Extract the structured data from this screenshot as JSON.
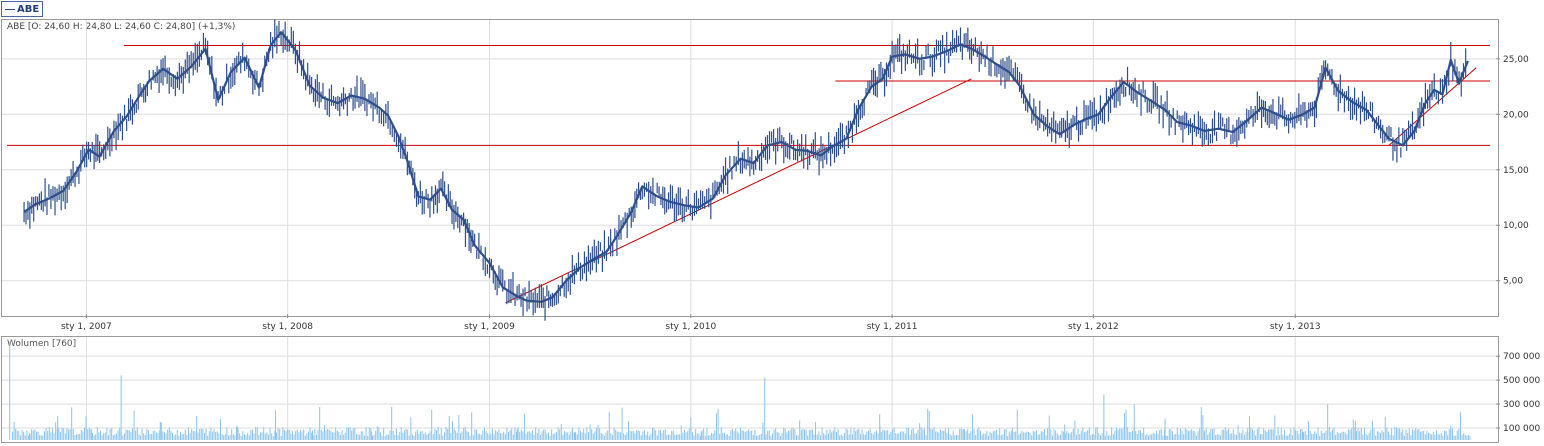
{
  "legend": {
    "symbol": "ABE"
  },
  "price_panel": {
    "ohlc_text": "ABE [O: 24,60  H: 24,80  L: 24,60  C: 24,80] (+1,3%)"
  },
  "volume_panel": {
    "label": "Wolumen [760]"
  },
  "colors": {
    "price_line": "#2f4e8c",
    "trend_line": "#cc0000",
    "volume_bar": "#8ec3e8",
    "grid": "#dddddd"
  },
  "chart_data": [
    {
      "type": "line",
      "series": [
        {
          "values_x": [
            "2006-09-10",
            "2006-10-01",
            "2006-10-25",
            "2006-11-20",
            "2006-12-15",
            "2007-01-05",
            "2007-01-25",
            "2007-02-20",
            "2007-03-15",
            "2007-04-05",
            "2007-04-25",
            "2007-05-20",
            "2007-06-15",
            "2007-07-10",
            "2007-08-05",
            "2007-08-28",
            "2007-09-20",
            "2007-10-15",
            "2007-11-10",
            "2007-12-01",
            "2007-12-20",
            "2008-01-15",
            "2008-02-10",
            "2008-03-05",
            "2008-04-01",
            "2008-04-25",
            "2008-05-20",
            "2008-06-15",
            "2008-07-01",
            "2008-07-20",
            "2008-08-05",
            "2008-08-25",
            "2008-09-15",
            "2008-10-05",
            "2008-10-25",
            "2008-11-15",
            "2008-12-05",
            "2009-01-01",
            "2009-01-25",
            "2009-02-20",
            "2009-03-10",
            "2009-04-05",
            "2009-04-25",
            "2009-05-20",
            "2009-06-15",
            "2009-07-10",
            "2009-08-01",
            "2009-08-20",
            "2009-09-15",
            "2009-10-05",
            "2009-11-01",
            "2009-11-25",
            "2009-12-20",
            "2010-01-15",
            "2010-02-10",
            "2010-03-05",
            "2010-04-01",
            "2010-04-25",
            "2010-05-20",
            "2010-06-15",
            "2010-07-10",
            "2010-08-01",
            "2010-08-25",
            "2010-09-15",
            "2010-10-10",
            "2010-11-01",
            "2010-11-25",
            "2010-12-15",
            "2011-01-01",
            "2011-01-25",
            "2011-02-20",
            "2011-03-15",
            "2011-04-10",
            "2011-05-05",
            "2011-05-25",
            "2011-06-15",
            "2011-07-10",
            "2011-08-01",
            "2011-08-20",
            "2011-09-15",
            "2011-10-10",
            "2011-11-01",
            "2011-11-25",
            "2011-12-15",
            "2012-01-10",
            "2012-02-01",
            "2012-02-25",
            "2012-03-20",
            "2012-04-15",
            "2012-05-10",
            "2012-06-01",
            "2012-06-25",
            "2012-07-20",
            "2012-08-15",
            "2012-09-10",
            "2012-10-05",
            "2012-11-01",
            "2012-11-25",
            "2012-12-20",
            "2013-01-15",
            "2013-02-05",
            "2013-02-25",
            "2013-03-20",
            "2013-04-15",
            "2013-05-10",
            "2013-06-01",
            "2013-06-20",
            "2013-07-15",
            "2013-08-05",
            "2013-08-25",
            "2013-09-10",
            "2013-09-25",
            "2013-10-10",
            "2013-10-25",
            "2013-11-10"
          ],
          "values_y": [
            11.2,
            11.9,
            12.4,
            13.1,
            14.9,
            16.8,
            16.2,
            18.5,
            19.8,
            21.5,
            23.0,
            24.1,
            23.2,
            24.3,
            25.9,
            21.3,
            23.8,
            25.1,
            22.4,
            26.2,
            27.4,
            25.8,
            22.6,
            21.5,
            21.0,
            21.7,
            21.4,
            20.6,
            19.9,
            18.0,
            15.8,
            12.6,
            12.3,
            13.3,
            11.4,
            10.5,
            8.2,
            6.6,
            4.4,
            3.6,
            3.2,
            3.1,
            3.5,
            5.0,
            6.2,
            7.0,
            7.6,
            9.0,
            11.2,
            13.5,
            12.6,
            12.1,
            11.8,
            11.6,
            12.4,
            14.5,
            16.0,
            15.6,
            17.2,
            17.5,
            16.8,
            16.7,
            16.3,
            17.1,
            17.8,
            20.5,
            22.5,
            23.2,
            25.2,
            25.4,
            25.0,
            25.2,
            25.7,
            26.3,
            25.9,
            25.3,
            24.5,
            23.8,
            22.6,
            20.0,
            18.9,
            18.2,
            19.0,
            19.5,
            20.0,
            21.5,
            22.9,
            22.0,
            21.2,
            20.4,
            19.3,
            19.0,
            18.5,
            18.7,
            18.4,
            19.4,
            20.6,
            20.1,
            19.5,
            20.0,
            20.6,
            24.2,
            22.1,
            21.1,
            20.4,
            19.0,
            17.8,
            17.2,
            18.5,
            21.0,
            22.2,
            21.8,
            24.9,
            22.8,
            24.8
          ]
        }
      ],
      "yticks": [
        "25,00",
        "20,00",
        "15,00",
        "10,00",
        "5,00"
      ],
      "ytick_values": [
        25,
        20,
        15,
        10,
        5
      ],
      "xticks": [
        "sty 1, 2007",
        "sty 1, 2008",
        "sty 1, 2009",
        "sty 1, 2010",
        "sty 1, 2011",
        "sty 1, 2012",
        "sty 1, 2013"
      ],
      "xtick_dates": [
        "2007-01-01",
        "2008-01-01",
        "2009-01-01",
        "2010-01-01",
        "2011-01-01",
        "2012-01-01",
        "2013-01-01"
      ],
      "xlim": [
        "2006-08-01",
        "2013-12-31"
      ],
      "ylim": [
        2.0,
        28.5
      ],
      "horizontal_lines": [
        {
          "y": 26.2,
          "x_from": "2007-03-10",
          "x_to": "2013-12-31"
        },
        {
          "y": 23.0,
          "x_from": "2010-09-20",
          "x_to": "2013-12-31"
        },
        {
          "y": 17.2,
          "x_from": "2006-08-10",
          "x_to": "2013-12-31"
        }
      ],
      "trend_lines": [
        {
          "x1": "2009-01-30",
          "y1": 3.0,
          "x2": "2011-05-25",
          "y2": 23.2
        },
        {
          "x1": "2013-06-20",
          "y1": 17.2,
          "x2": "2013-11-25",
          "y2": 24.2
        }
      ],
      "grid": true
    },
    {
      "type": "bar",
      "name": "Wolumen",
      "yticks": [
        "700 000",
        "500 000",
        "300 000",
        "100 000"
      ],
      "ytick_values": [
        700000,
        500000,
        300000,
        100000
      ],
      "ylim": [
        0,
        860000
      ],
      "bars": [
        {
          "x": "2006-08-15",
          "v": 820000
        },
        {
          "x": "2006-09-20",
          "v": 60000
        },
        {
          "x": "2006-11-10",
          "v": 200000
        },
        {
          "x": "2007-01-10",
          "v": 90000
        },
        {
          "x": "2007-03-05",
          "v": 540000
        },
        {
          "x": "2007-05-15",
          "v": 150000
        },
        {
          "x": "2007-07-20",
          "v": 200000
        },
        {
          "x": "2007-10-01",
          "v": 120000
        },
        {
          "x": "2007-12-10",
          "v": 250000
        },
        {
          "x": "2008-02-15",
          "v": 80000
        },
        {
          "x": "2008-06-01",
          "v": 70000
        },
        {
          "x": "2008-10-20",
          "v": 200000
        },
        {
          "x": "2009-02-20",
          "v": 90000
        },
        {
          "x": "2009-06-05",
          "v": 60000
        },
        {
          "x": "2009-09-10",
          "v": 160000
        },
        {
          "x": "2010-01-20",
          "v": 70000
        },
        {
          "x": "2010-05-15",
          "v": 520000
        },
        {
          "x": "2010-08-15",
          "v": 150000
        },
        {
          "x": "2010-12-10",
          "v": 120000
        },
        {
          "x": "2011-02-20",
          "v": 140000
        },
        {
          "x": "2011-05-10",
          "v": 90000
        },
        {
          "x": "2011-08-05",
          "v": 80000
        },
        {
          "x": "2011-11-10",
          "v": 130000
        },
        {
          "x": "2012-01-20",
          "v": 380000
        },
        {
          "x": "2012-03-15",
          "v": 300000
        },
        {
          "x": "2012-05-10",
          "v": 180000
        },
        {
          "x": "2012-07-20",
          "v": 80000
        },
        {
          "x": "2012-10-10",
          "v": 200000
        },
        {
          "x": "2013-01-15",
          "v": 70000
        },
        {
          "x": "2013-04-20",
          "v": 160000
        },
        {
          "x": "2013-07-15",
          "v": 90000
        },
        {
          "x": "2013-10-10",
          "v": 120000
        }
      ]
    }
  ]
}
